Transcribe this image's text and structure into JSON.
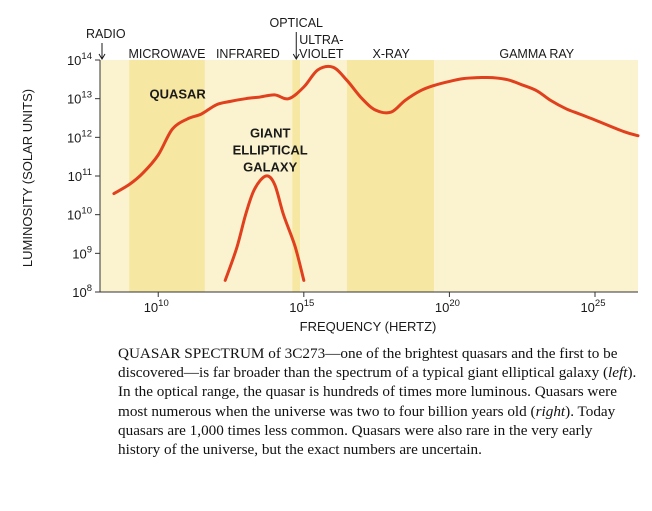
{
  "chart_data": {
    "type": "line",
    "x_scale": "log",
    "y_scale": "log",
    "grid": false,
    "xlabel": "FREQUENCY (HERTZ)",
    "ylabel": "LUMINOSITY (SOLAR UNITS)",
    "xlim": [
      100000000.0,
      3e+26
    ],
    "ylim": [
      100000000.0,
      100000000000000.0
    ],
    "x_ticks": [
      {
        "value": 10000000000.0,
        "base": "10",
        "exp": "10"
      },
      {
        "value": 1000000000000000.0,
        "base": "10",
        "exp": "15"
      },
      {
        "value": 1e+20,
        "base": "10",
        "exp": "20"
      },
      {
        "value": 1e+25,
        "base": "10",
        "exp": "25"
      }
    ],
    "y_ticks": [
      {
        "value": 100000000.0,
        "base": "10",
        "exp": "8"
      },
      {
        "value": 1000000000.0,
        "base": "10",
        "exp": "9"
      },
      {
        "value": 10000000000.0,
        "base": "10",
        "exp": "10"
      },
      {
        "value": 100000000000.0,
        "base": "10",
        "exp": "11"
      },
      {
        "value": 1000000000000.0,
        "base": "10",
        "exp": "12"
      },
      {
        "value": 10000000000000.0,
        "base": "10",
        "exp": "13"
      },
      {
        "value": 100000000000000.0,
        "base": "10",
        "exp": "14"
      }
    ],
    "bands": [
      {
        "name": "RADIO",
        "from": 100000000.0,
        "to": 1000000000.0,
        "color": "#fbf3cf",
        "label_x": 100000000.0,
        "arrow": true
      },
      {
        "name": "MICROWAVE",
        "from": 1000000000.0,
        "to": 400000000000.0,
        "color": "#f6e7a3",
        "label_x": 20000000000.0,
        "arrow": false
      },
      {
        "name": "INFRARED",
        "from": 400000000000.0,
        "to": 400000000000000.0,
        "color": "#fbf3cf",
        "label_x": 12000000000000.0,
        "arrow": false
      },
      {
        "name": "OPTICAL",
        "from": 400000000000000.0,
        "to": 750000000000000.0,
        "color": "#f6e7a3",
        "label_x": 550000000000000.0,
        "arrow": true
      },
      {
        "name": "ULTRA-\nVIOLET",
        "from": 750000000000000.0,
        "to": 3e+16,
        "color": "#fbf3cf",
        "label_x": 4000000000000000.0,
        "arrow": false
      },
      {
        "name": "X-RAY",
        "from": 3e+16,
        "to": 3e+19,
        "color": "#f6e7a3",
        "label_x": 1e+18,
        "arrow": false
      },
      {
        "name": "GAMMA RAY",
        "from": 3e+19,
        "to": 3e+26,
        "color": "#fbf3cf",
        "label_x": 1e+23,
        "arrow": false
      }
    ],
    "series": [
      {
        "name": "QUASAR",
        "color": "#e0401e",
        "x": [
          300000000.0,
          1000000000.0,
          3000000000.0,
          10000000000.0,
          30000000000.0,
          100000000000.0,
          300000000000.0,
          1000000000000.0,
          3000000000000.0,
          10000000000000.0,
          30000000000000.0,
          100000000000000.0,
          300000000000000.0,
          1000000000000000.0,
          3000000000000000.0,
          1e+16,
          3e+16,
          1e+17,
          3e+17,
          1e+18,
          3e+18,
          1e+19,
          3e+19,
          1e+20,
          3e+20,
          1e+21,
          3e+21,
          1e+22,
          3e+22,
          1e+23,
          3e+23,
          1e+24,
          3e+24,
          1e+25,
          1e+26,
          3e+26
        ],
        "y": [
          35000000000.0,
          60000000000.0,
          120000000000.0,
          350000000000.0,
          1600000000000.0,
          3000000000000.0,
          4000000000000.0,
          7000000000000.0,
          8500000000000.0,
          10000000000000.0,
          11000000000000.0,
          12500000000000.0,
          10000000000000.0,
          20000000000000.0,
          55000000000000.0,
          65000000000000.0,
          30000000000000.0,
          10000000000000.0,
          5000000000000.0,
          4500000000000.0,
          9000000000000.0,
          16000000000000.0,
          22000000000000.0,
          28000000000000.0,
          33000000000000.0,
          35000000000000.0,
          35000000000000.0,
          31000000000000.0,
          23000000000000.0,
          16000000000000.0,
          9000000000000.0,
          5500000000000.0,
          4000000000000.0,
          2800000000000.0,
          1400000000000.0,
          1100000000000.0
        ]
      },
      {
        "name": "GIANT ELLIPTICAL GALAXY",
        "color": "#e0401e",
        "x": [
          2000000000000.0,
          5000000000000.0,
          10000000000000.0,
          20000000000000.0,
          50000000000000.0,
          100000000000000.0,
          200000000000000.0,
          500000000000000.0,
          1000000000000000.0
        ],
        "y": [
          200000000.0,
          1400000000.0,
          10000000000.0,
          45000000000.0,
          100000000000.0,
          60000000000.0,
          10000000000.0,
          1500000000.0,
          200000000.0
        ]
      }
    ],
    "series_labels": [
      {
        "text": "QUASAR",
        "x": 5000000000.0,
        "y": 10000000000000.0
      },
      {
        "text": "GIANT\nELLIPTICAL\nGALAXY",
        "x": 70000000000000.0,
        "y": 1000000000000.0
      }
    ]
  },
  "caption": {
    "lead": "QUASAR SPECTRUM",
    "segments": [
      {
        "t": " of 3C273—one of the brightest quasars and the first to be discovered—is far broader than the spectrum of a typical giant elliptical galaxy (",
        "i": false
      },
      {
        "t": "left",
        "i": true
      },
      {
        "t": "). In the optical range, the quasar is hundreds of times more luminous. Quasars were most numerous when the universe was two to four billion years old (",
        "i": false
      },
      {
        "t": "right",
        "i": true
      },
      {
        "t": "). Today quasars are 1,000 times less common. Quasars were also rare in the very early history of the universe, but the exact numbers are uncertain.",
        "i": false
      }
    ]
  }
}
